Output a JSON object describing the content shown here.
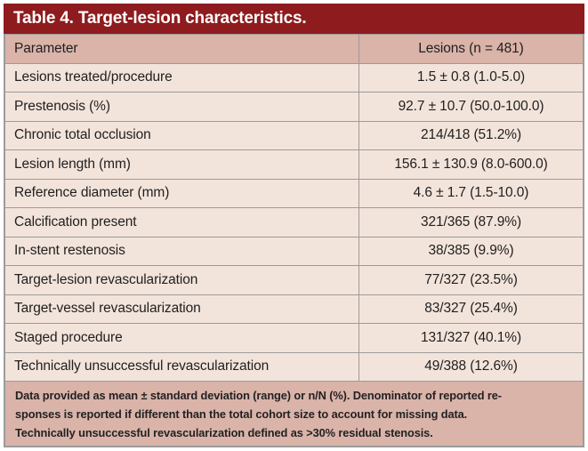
{
  "title": "Table 4. Target-lesion characteristics.",
  "table": {
    "header": {
      "parameter": "Parameter",
      "value": "Lesions (n = 481)"
    },
    "rows": [
      {
        "parameter": "Lesions treated/procedure",
        "value": "1.5 ± 0.8 (1.0-5.0)"
      },
      {
        "parameter": "Prestenosis (%)",
        "value": "92.7 ± 10.7 (50.0-100.0)"
      },
      {
        "parameter": "Chronic total occlusion",
        "value": "214/418 (51.2%)"
      },
      {
        "parameter": "Lesion length (mm)",
        "value": "156.1 ± 130.9 (8.0-600.0)"
      },
      {
        "parameter": "Reference diameter (mm)",
        "value": "4.6 ± 1.7 (1.5-10.0)"
      },
      {
        "parameter": "Calcification present",
        "value": "321/365 (87.9%)"
      },
      {
        "parameter": "In-stent restenosis",
        "value": "38/385 (9.9%)"
      },
      {
        "parameter": "Target-lesion revascularization",
        "value": "77/327 (23.5%)"
      },
      {
        "parameter": "Target-vessel revascularization",
        "value": "83/327 (25.4%)"
      },
      {
        "parameter": "Staged procedure",
        "value": "131/327 (40.1%)"
      },
      {
        "parameter": "Technically unsuccessful revascularization",
        "value": "49/388 (12.6%)"
      }
    ]
  },
  "footnote": {
    "lines": [
      "Data provided as mean ± standard deviation (range) or n/N (%). Denominator of reported re-",
      "sponses is reported if different than the total cohort size to account for missing data.",
      "Technically unsuccessful revascularization defined as >30% residual stenosis."
    ]
  },
  "colors": {
    "title_bar": "#8e1b1e",
    "header_row_background": "#dab3a9",
    "data_row_background": "#f3e4db",
    "footnote_background": "#dab3a9",
    "grid_line": "#9b9b9b",
    "title_text": "#ffffff",
    "body_text": "#1f1f1f"
  }
}
